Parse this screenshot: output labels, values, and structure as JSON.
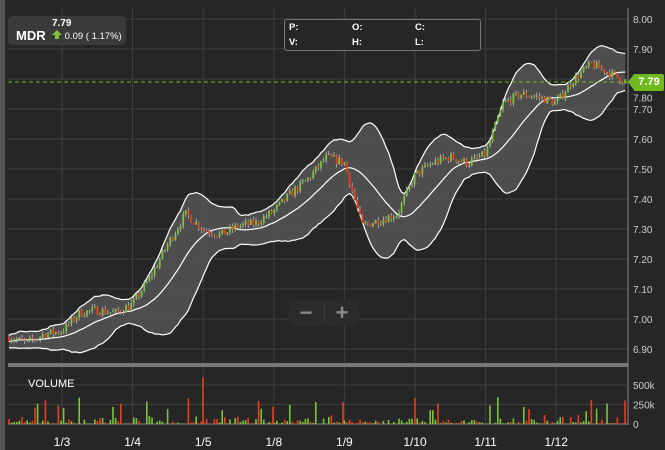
{
  "ticker": {
    "symbol": "MDR",
    "last": "7.79",
    "change": "0.09 ( 1.17%)",
    "direction": "up"
  },
  "ohlc_panel": {
    "p": "P:",
    "o": "O:",
    "c": "C:",
    "v": "V:",
    "h": "H:",
    "l": "L:"
  },
  "zoom": {
    "minus": "−",
    "plus": "+"
  },
  "last_price_badge": "7.79",
  "colors": {
    "up": "#7cc23a",
    "down": "#e8401c",
    "band": "#ffffff",
    "band_fill": "#555555",
    "last_line": "#6fba1f",
    "grid": "#3f3f3f",
    "background": "#262626"
  },
  "chart_data": [
    {
      "type": "candlestick",
      "indicator": "bollinger-bands",
      "x_ticks": [
        "1/3",
        "1/4",
        "1/5",
        "1/8",
        "1/9",
        "1/10",
        "1/11",
        "1/12"
      ],
      "y_ticks": [
        "6.90",
        "7.00",
        "7.10",
        "7.20",
        "7.30",
        "7.40",
        "7.50",
        "7.60",
        "7.70",
        "7.80",
        "7.90",
        "8.00"
      ],
      "ylim": [
        6.86,
        8.01
      ],
      "grid": true,
      "last_price": 7.79,
      "close_path": [
        [
          "1/2 06:00",
          6.94
        ],
        [
          "1/2 12:00",
          6.92
        ],
        [
          "1/2 18:00",
          6.95
        ],
        [
          "1/3 00:00",
          6.96
        ],
        [
          "1/3 06:00",
          7.02
        ],
        [
          "1/3 12:00",
          7.03
        ],
        [
          "1/3 18:00",
          7.02
        ],
        [
          "1/4 00:00",
          7.05
        ],
        [
          "1/4 06:00",
          7.14
        ],
        [
          "1/4 12:00",
          7.25
        ],
        [
          "1/4 18:00",
          7.35
        ],
        [
          "1/5 00:00",
          7.3
        ],
        [
          "1/5 06:00",
          7.28
        ],
        [
          "1/5 12:00",
          7.31
        ],
        [
          "1/5 18:00",
          7.32
        ],
        [
          "1/8 00:00",
          7.36
        ],
        [
          "1/8 06:00",
          7.42
        ],
        [
          "1/8 12:00",
          7.47
        ],
        [
          "1/8 18:00",
          7.54
        ],
        [
          "1/9 00:00",
          7.52
        ],
        [
          "1/9 06:00",
          7.31
        ],
        [
          "1/9 12:00",
          7.33
        ],
        [
          "1/9 18:00",
          7.35
        ],
        [
          "1/10 00:00",
          7.48
        ],
        [
          "1/10 06:00",
          7.52
        ],
        [
          "1/10 12:00",
          7.54
        ],
        [
          "1/10 18:00",
          7.52
        ],
        [
          "1/11 00:00",
          7.55
        ],
        [
          "1/11 06:00",
          7.72
        ],
        [
          "1/11 12:00",
          7.75
        ],
        [
          "1/11 18:00",
          7.74
        ],
        [
          "1/12 00:00",
          7.72
        ],
        [
          "1/12 06:00",
          7.8
        ],
        [
          "1/12 12:00",
          7.85
        ],
        [
          "1/12 18:00",
          7.82
        ],
        [
          "1/12 24:00",
          7.79
        ]
      ]
    },
    {
      "type": "bar",
      "title": "VOLUME",
      "y_ticks": [
        "0",
        "250k",
        "500k"
      ],
      "ylim": [
        0,
        600000
      ]
    }
  ]
}
